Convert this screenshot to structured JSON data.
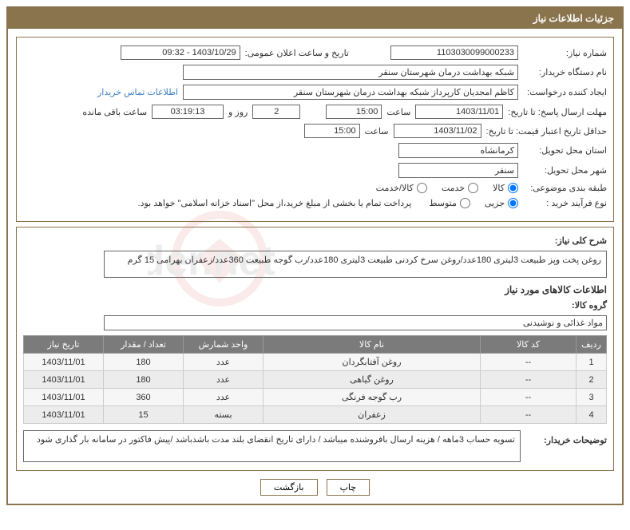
{
  "header": {
    "title": "جزئیات اطلاعات نیاز"
  },
  "fields": {
    "need_no_label": "شماره نیاز:",
    "need_no": "1103030099000233",
    "announce_label": "تاریخ و ساعت اعلان عمومی:",
    "announce_value": "1403/10/29 - 09:32",
    "buyer_org_label": "نام دستگاه خریدار:",
    "buyer_org": "شبکه بهداشت درمان شهرستان سنقر",
    "requester_label": "ایجاد کننده درخواست:",
    "requester": "کاظم امجدیان کارپرداز شبکه بهداشت درمان شهرستان سنقر",
    "contact_link": "اطلاعات تماس خریدار",
    "deadline_label": "مهلت ارسال پاسخ: تا تاریخ:",
    "deadline_date": "1403/11/01",
    "time_label": "ساعت",
    "deadline_time": "15:00",
    "days_remaining": "2",
    "days_label": "روز و",
    "countdown": "03:19:13",
    "remain_label": "ساعت باقی مانده",
    "validity_label": "حداقل تاریخ اعتبار قیمت: تا تاریخ:",
    "validity_date": "1403/11/02",
    "validity_time": "15:00",
    "province_label": "استان محل تحویل:",
    "province": "کرمانشاه",
    "city_label": "شهر محل تحویل:",
    "city": "سنقر",
    "category_label": "طبقه بندی موضوعی:",
    "cat_goods": "کالا",
    "cat_service": "خدمت",
    "cat_both": "کالا/خدمت",
    "process_label": "نوع فرآیند خرید :",
    "proc_partial": "جزیی",
    "proc_medium": "متوسط",
    "payment_note": "پرداخت تمام یا بخشی از مبلغ خرید،از محل \"اسناد خزانه اسلامی\" خواهد بود.",
    "overview_label": "شرح کلی نیاز:",
    "overview": "روغن پخت وپز طبیعت 3لیتری 180عدد/روغن سرخ کردنی طبیعت 3لیتری 180عدد/رب گوجه طبیعت 360عدد/زعفران بهرامی 15 گرم",
    "goods_section": "اطلاعات کالاهای مورد نیاز",
    "group_label": "گروه کالا:",
    "group": "مواد غذائی و نوشیدنی",
    "buyer_notes_label": "توضیحات خریدار:",
    "buyer_notes": "تسویه حساب 3ماهه / هزینه ارسال بافروشنده میباشد / دارای تاریخ انقضای بلند مدت باشدباشد /پیش فاکتور در سامانه بار گذاری شود"
  },
  "table": {
    "headers": {
      "idx": "ردیف",
      "code": "کد کالا",
      "name": "نام کالا",
      "unit": "واحد شمارش",
      "qty": "تعداد / مقدار",
      "date": "تاریخ نیاز"
    },
    "rows": [
      {
        "idx": "1",
        "code": "--",
        "name": "روغن آفتابگردان",
        "unit": "عدد",
        "qty": "180",
        "date": "1403/11/01"
      },
      {
        "idx": "2",
        "code": "--",
        "name": "روغن گیاهی",
        "unit": "عدد",
        "qty": "180",
        "date": "1403/11/01"
      },
      {
        "idx": "3",
        "code": "--",
        "name": "رب گوجه فرنگی",
        "unit": "عدد",
        "qty": "360",
        "date": "1403/11/01"
      },
      {
        "idx": "4",
        "code": "--",
        "name": "زعفران",
        "unit": "بسته",
        "qty": "15",
        "date": "1403/11/01"
      }
    ]
  },
  "buttons": {
    "print": "چاپ",
    "back": "بازگشت"
  },
  "watermark": "AriaTender.net"
}
